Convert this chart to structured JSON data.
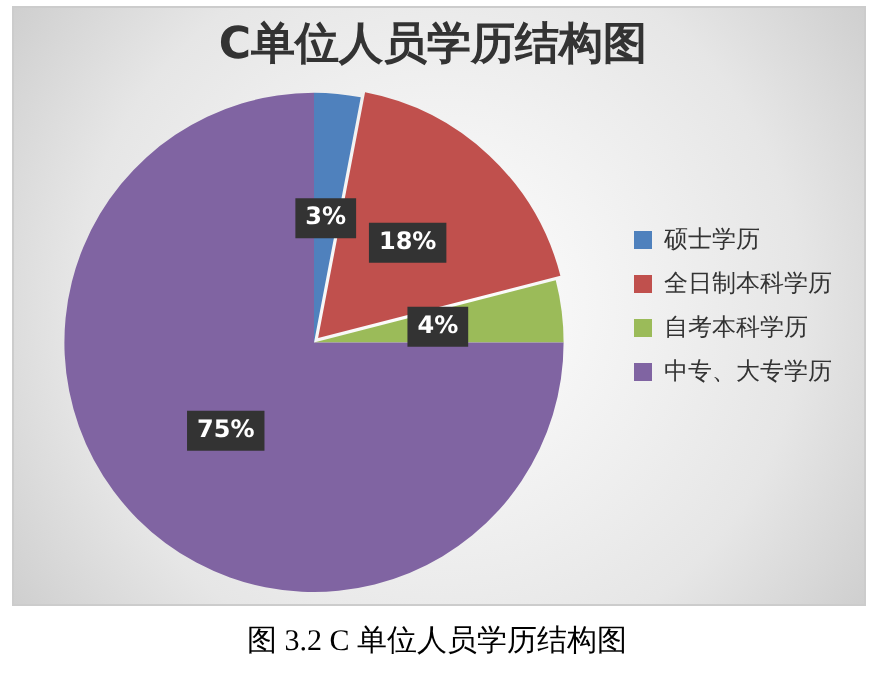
{
  "chart_data": {
    "type": "pie",
    "title": "C单位人员学历结构图",
    "categories": [
      "硕士学历",
      "全日制本科学历",
      "自考本科学历",
      "中专、大专学历"
    ],
    "values": [
      3,
      18,
      4,
      75
    ],
    "colors": [
      "#4f81bd",
      "#c0504d",
      "#9bbb59",
      "#8064a2"
    ],
    "value_labels": [
      "3%",
      "18%",
      "4%",
      "75%"
    ],
    "legend": "right",
    "annotations": [
      "图 3.2 C 单位人员学历结构图"
    ]
  }
}
